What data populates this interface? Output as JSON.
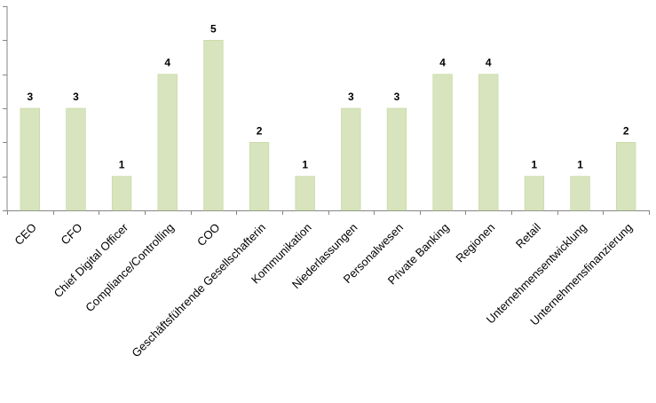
{
  "chart_data": {
    "type": "bar",
    "categories": [
      "CEO",
      "CFO",
      "Chief Digital Officer",
      "Compliance/Controlling",
      "COO",
      "Geschäftsführende Gesellschafterin",
      "Kommunikation",
      "Niederlassungen",
      "Personalwesen",
      "Private Banking",
      "Regionen",
      "Retail",
      "Unternehmensentwicklung",
      "Unternehmensfinanzierung"
    ],
    "values": [
      3,
      3,
      1,
      4,
      5,
      2,
      1,
      3,
      3,
      4,
      4,
      1,
      1,
      2
    ],
    "title": "",
    "xlabel": "",
    "ylabel": "",
    "ylim": [
      0,
      6
    ],
    "grid": false,
    "legend": "none",
    "colors": {
      "bar_fill": "#d7e4bd",
      "bar_stroke": "#c3d69b",
      "axis": "#868686"
    }
  }
}
